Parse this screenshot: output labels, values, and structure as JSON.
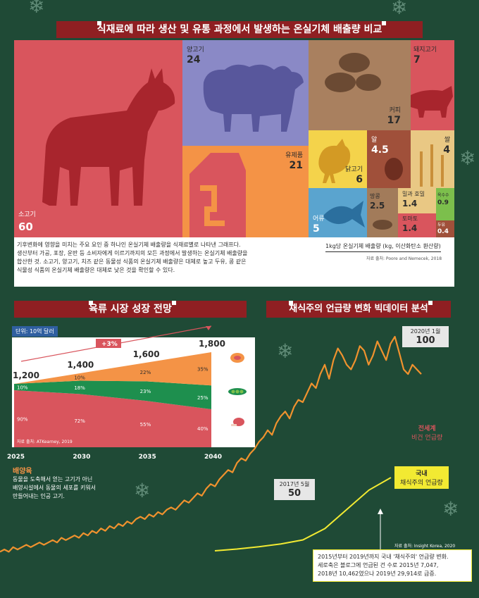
{
  "section1": {
    "title": "식재료에 따라 생산 및 유통 과정에서 발생하는 온실기체 배출량 비교",
    "description": [
      "기후변화에 영향을 미치는 주요 요인 중 하나인 온실기체 배출량을 식재료별로 나타낸 그래프다.",
      "생산부터 가공, 포장, 운반 등 소비자에게 이르기까지의 모든 과정에서 발생하는 온실기체 배출량을",
      "합산한 것. 소고기, 양고기, 치즈 같은 동물성 식품의 온실기체 배출량은 대체로 높고 두유, 콩 같은",
      "식물성 식품의 온실기체 배출량은 대체로 낮은 것을 확인할 수 있다."
    ],
    "unit_note": "1kg당 온실기체 배출량 (kg, 이산화탄소 환산량)",
    "source": "자료 출처: Poore and Nemecek, 2018"
  },
  "section2": {
    "title": "육류 시장 성장 전망",
    "unit": "단위: 10억 달러",
    "growth": "+3%",
    "source": "자료 출처: ATKearney, 2019",
    "legend": [
      "배양육",
      "식물성 고기",
      "기존 육류"
    ],
    "note_title": "배양육",
    "note_lines": [
      "동물을 도축해서 얻는 고기가 아닌",
      "배양시설에서 동물의 세포를 키워서",
      "만들어내는 인공 고기."
    ]
  },
  "section3": {
    "title": "채식주의 언급량 변화 빅데이터 분석",
    "peak_label": "2020년 1월",
    "peak_value": "100",
    "dip_label": "2017년 5월",
    "dip_value": "50",
    "global_label": [
      "전세계",
      "비건 언급량"
    ],
    "domestic_label": [
      "국내",
      "채식주의 언급량"
    ],
    "source": "자료 출처: Insight Korea, 2020",
    "note_lines": [
      "2015년부터 2019년까지 국내 '채식주의' 언급량 변화.",
      "세로축은 블로그에 언급된 건 수로 2015년 7,047,",
      "2018년 10,462였으나 2019년 29,914로 급증."
    ]
  },
  "chart_data": [
    {
      "type": "treemap",
      "items": [
        {
          "label": "소고기",
          "value": 60,
          "color": "#d9555d"
        },
        {
          "label": "양고기",
          "value": 24,
          "color": "#8a89c6"
        },
        {
          "label": "유제품",
          "value": 21,
          "color": "#f49346"
        },
        {
          "label": "돼지고기",
          "value": 7,
          "color": "#d9555d"
        },
        {
          "label": "커피",
          "value": 17,
          "color": "#a9805f"
        },
        {
          "label": "닭고기",
          "value": 6,
          "color": "#f4d34b"
        },
        {
          "label": "알",
          "value": 4.5,
          "color": "#a0503a"
        },
        {
          "label": "쌀",
          "value": 4,
          "color": "#e9c884"
        },
        {
          "label": "어류",
          "value": 5,
          "color": "#5aa4cf"
        },
        {
          "label": "땅콩",
          "value": 2.5,
          "color": "#a27b5a"
        },
        {
          "label": "밀과 호밀",
          "value": 1.4,
          "color": "#e9c884"
        },
        {
          "label": "토마토",
          "value": 1.4,
          "color": "#d9555d"
        },
        {
          "label": "옥수수",
          "value": 0.9,
          "color": "#7cbf4c"
        },
        {
          "label": "두유",
          "value": 0.4,
          "color": "#a0503a"
        }
      ]
    },
    {
      "type": "area",
      "x": [
        "2025",
        "2030",
        "2035",
        "2040"
      ],
      "totals": [
        1200,
        1400,
        1600,
        1800
      ],
      "total_labels": [
        "1,200",
        "1,400",
        "1,600",
        "1,800"
      ],
      "series": [
        {
          "name": "배양육",
          "values": [
            0,
            10,
            22,
            35
          ],
          "labels": [
            "",
            "10%",
            "22%",
            "35%"
          ],
          "color": "#f49346"
        },
        {
          "name": "식물성 고기",
          "values": [
            10,
            18,
            23,
            25
          ],
          "labels": [
            "10%",
            "18%",
            "23%",
            "25%"
          ],
          "color": "#1e8f4e"
        },
        {
          "name": "기존 육류",
          "values": [
            90,
            72,
            55,
            40
          ],
          "labels": [
            "90%",
            "72%",
            "55%",
            "40%"
          ],
          "color": "#d9555d"
        }
      ]
    },
    {
      "type": "line",
      "series": [
        {
          "name": "전세계 비건 언급량",
          "color": "#f0922e",
          "values": [
            8,
            9,
            8,
            10,
            9,
            10,
            11,
            10,
            11,
            12,
            11,
            12,
            13,
            12,
            14,
            13,
            14,
            15,
            14,
            16,
            15,
            17,
            16,
            18,
            17,
            19,
            18,
            20,
            19,
            21,
            20,
            22,
            23,
            22,
            24,
            23,
            25,
            24,
            26,
            27,
            26,
            28,
            30,
            29,
            31,
            33,
            32,
            35,
            37,
            36,
            39,
            41,
            43,
            42,
            46,
            48,
            47,
            50,
            52,
            55,
            57,
            60,
            58,
            63,
            66,
            68,
            65,
            70,
            73,
            72,
            76,
            80,
            78,
            84,
            88,
            82,
            90,
            95,
            92,
            88,
            86,
            90,
            96,
            94,
            88,
            92,
            98,
            94,
            90,
            97,
            100,
            93,
            86,
            84,
            88,
            86,
            84
          ]
        },
        {
          "name": "국내 채식주의 언급량",
          "color": "#f2ea32",
          "values": [
            7047,
            7600,
            8300,
            9200,
            10462,
            14000,
            20000,
            26000,
            29914
          ]
        }
      ]
    }
  ]
}
